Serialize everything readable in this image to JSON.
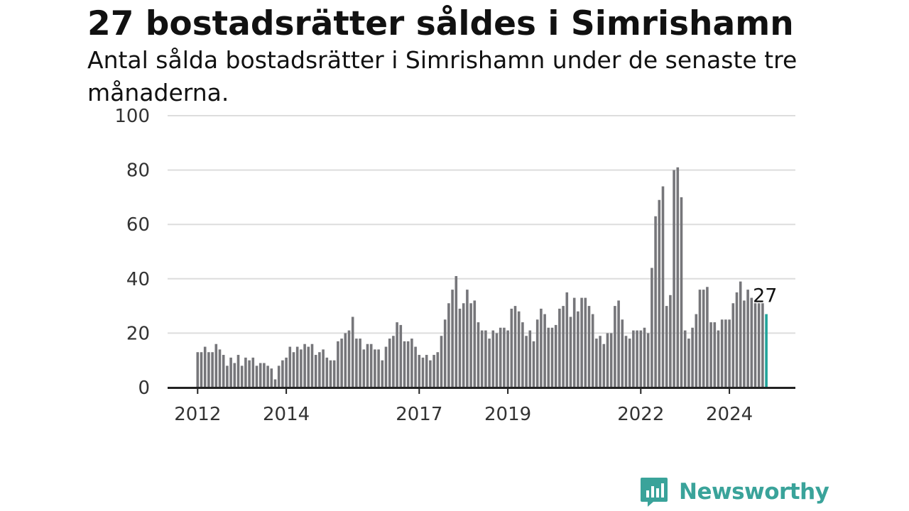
{
  "header": {
    "title": "27 bostadsrätter såldes i Simrishamn",
    "subtitle": "Antal sålda bostadsrätter i Simrishamn under de senaste tre månaderna."
  },
  "colors": {
    "bar": "#76767a",
    "highlight": "#20a39a",
    "grid": "#dddddd",
    "axis": "#222222",
    "brand": "#3aa39a"
  },
  "brand": {
    "name": "Newsworthy",
    "icon": "bar-chart-bubble-icon"
  },
  "chart_data": {
    "type": "bar",
    "title": "27 bostadsrätter såldes i Simrishamn",
    "subtitle": "Antal sålda bostadsrätter i Simrishamn under de senaste tre månaderna.",
    "xlabel": "",
    "ylabel": "",
    "ylim": [
      0,
      100
    ],
    "yticks": [
      0,
      20,
      40,
      60,
      80,
      100
    ],
    "x_tick_labels": [
      {
        "label": "2012",
        "index": 0
      },
      {
        "label": "2014",
        "index": 24
      },
      {
        "label": "2017",
        "index": 60
      },
      {
        "label": "2019",
        "index": 84
      },
      {
        "label": "2022",
        "index": 120
      },
      {
        "label": "2024",
        "index": 144
      }
    ],
    "grid": true,
    "last_value_label": "27",
    "values": [
      13,
      13,
      15,
      13,
      13,
      16,
      14,
      12,
      8,
      11,
      9,
      12,
      8,
      11,
      10,
      11,
      8,
      9,
      9,
      8,
      7,
      3,
      8,
      10,
      11,
      15,
      13,
      15,
      14,
      16,
      15,
      16,
      12,
      13,
      14,
      11,
      10,
      10,
      17,
      18,
      20,
      21,
      26,
      18,
      18,
      14,
      16,
      16,
      14,
      14,
      10,
      15,
      18,
      19,
      24,
      23,
      17,
      17,
      18,
      15,
      12,
      11,
      12,
      10,
      12,
      13,
      19,
      25,
      31,
      36,
      41,
      29,
      31,
      36,
      31,
      32,
      24,
      21,
      21,
      18,
      21,
      20,
      22,
      22,
      21,
      29,
      30,
      28,
      24,
      19,
      21,
      17,
      25,
      29,
      27,
      22,
      22,
      23,
      29,
      30,
      35,
      26,
      33,
      28,
      33,
      33,
      30,
      27,
      18,
      19,
      16,
      20,
      20,
      30,
      32,
      25,
      19,
      18,
      21,
      21,
      21,
      22,
      20,
      44,
      63,
      69,
      74,
      30,
      34,
      80,
      81,
      70,
      21,
      18,
      22,
      27,
      36,
      36,
      37,
      24,
      24,
      21,
      25,
      25,
      25,
      31,
      35,
      39,
      32,
      36,
      33,
      31,
      31,
      31,
      27
    ],
    "highlight_last": true
  }
}
